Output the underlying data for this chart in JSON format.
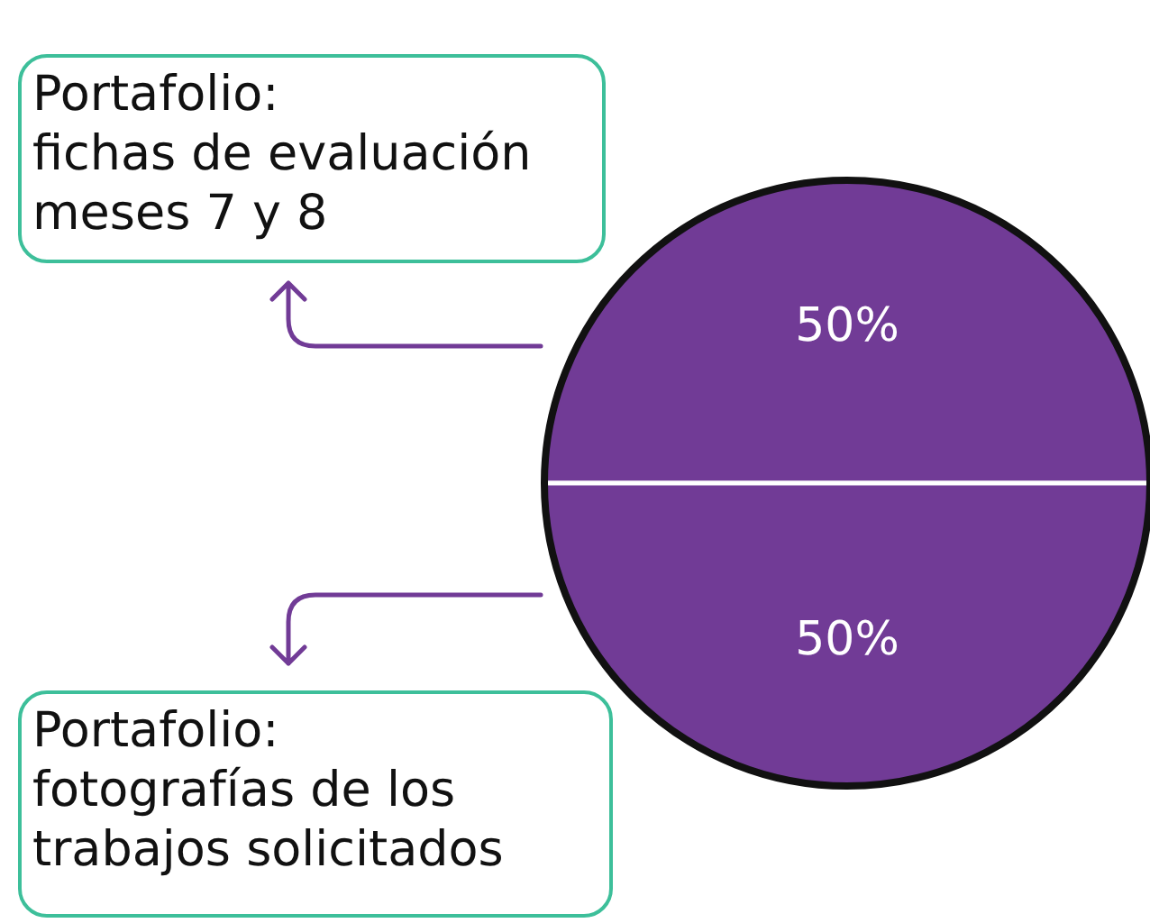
{
  "chart_data": {
    "type": "pie",
    "categories": [
      "Portafolio:\nfichas de evaluación\nmeses 7 y 8",
      "Portafolio:\nfotografías de los\ntrabajos solicitados"
    ],
    "values": [
      50,
      50
    ],
    "colors": [
      "#713b96",
      "#713b96"
    ],
    "value_labels": [
      "50%",
      "50%"
    ]
  }
}
